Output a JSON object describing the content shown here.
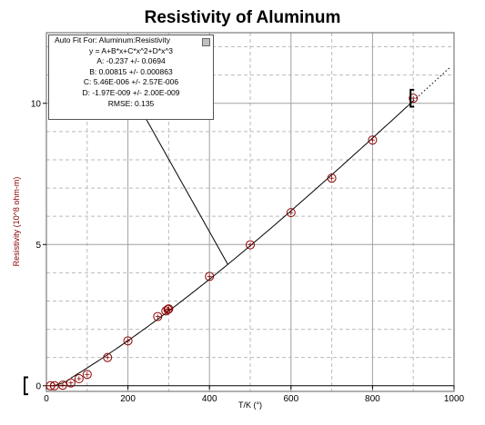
{
  "chart_data": {
    "type": "scatter",
    "title": "Resistivity of Aluminum",
    "xlabel": "T/K (°)",
    "ylabel": "Resistivity (10^8 ohm-m)",
    "xlim": [
      0,
      1000
    ],
    "ylim": [
      -0.2,
      12.5
    ],
    "xticks": [
      "0",
      "200",
      "400",
      "600",
      "800",
      "1000"
    ],
    "yticks": [
      "0",
      "5",
      "10"
    ],
    "grid": true,
    "marker_color": "#8b0000",
    "curve_color": "#000000",
    "points": {
      "x": [
        10,
        20,
        40,
        60,
        80,
        100,
        150,
        200,
        273,
        293,
        298,
        300,
        400,
        500,
        600,
        700,
        800,
        900
      ],
      "y": [
        0.0,
        0.0,
        0.02,
        0.1,
        0.25,
        0.4,
        1.0,
        1.59,
        2.45,
        2.65,
        2.7,
        2.72,
        3.87,
        4.99,
        6.13,
        7.35,
        8.7,
        10.18
      ]
    },
    "curve": {
      "type": "cubic",
      "A": -0.237,
      "B": 0.00815,
      "C": 5.46e-06,
      "D": -1.97e-09,
      "x_solid": [
        50,
        900
      ],
      "x_dotted": [
        900,
        990
      ]
    },
    "error_brackets": [
      {
        "x": 900,
        "y": 10.18,
        "err": 0.3
      },
      {
        "x": 0,
        "y": 0.0,
        "err": 0.3
      }
    ],
    "annotation_leader": {
      "x": 445,
      "y": 4.45
    },
    "fit_box": {
      "header": "Auto Fit For:  Aluminum:Resistivity",
      "equation": "y = A+B*x+C*x^2+D*x^3",
      "A": "A: -0.237 +/- 0.0694",
      "B": "B: 0.00815 +/- 0.000863",
      "C": "C: 5.46E-006 +/- 2.57E-006",
      "D": "D: -1.97E-009 +/- 2.00E-009",
      "rmse": "RMSE: 0.135"
    }
  }
}
